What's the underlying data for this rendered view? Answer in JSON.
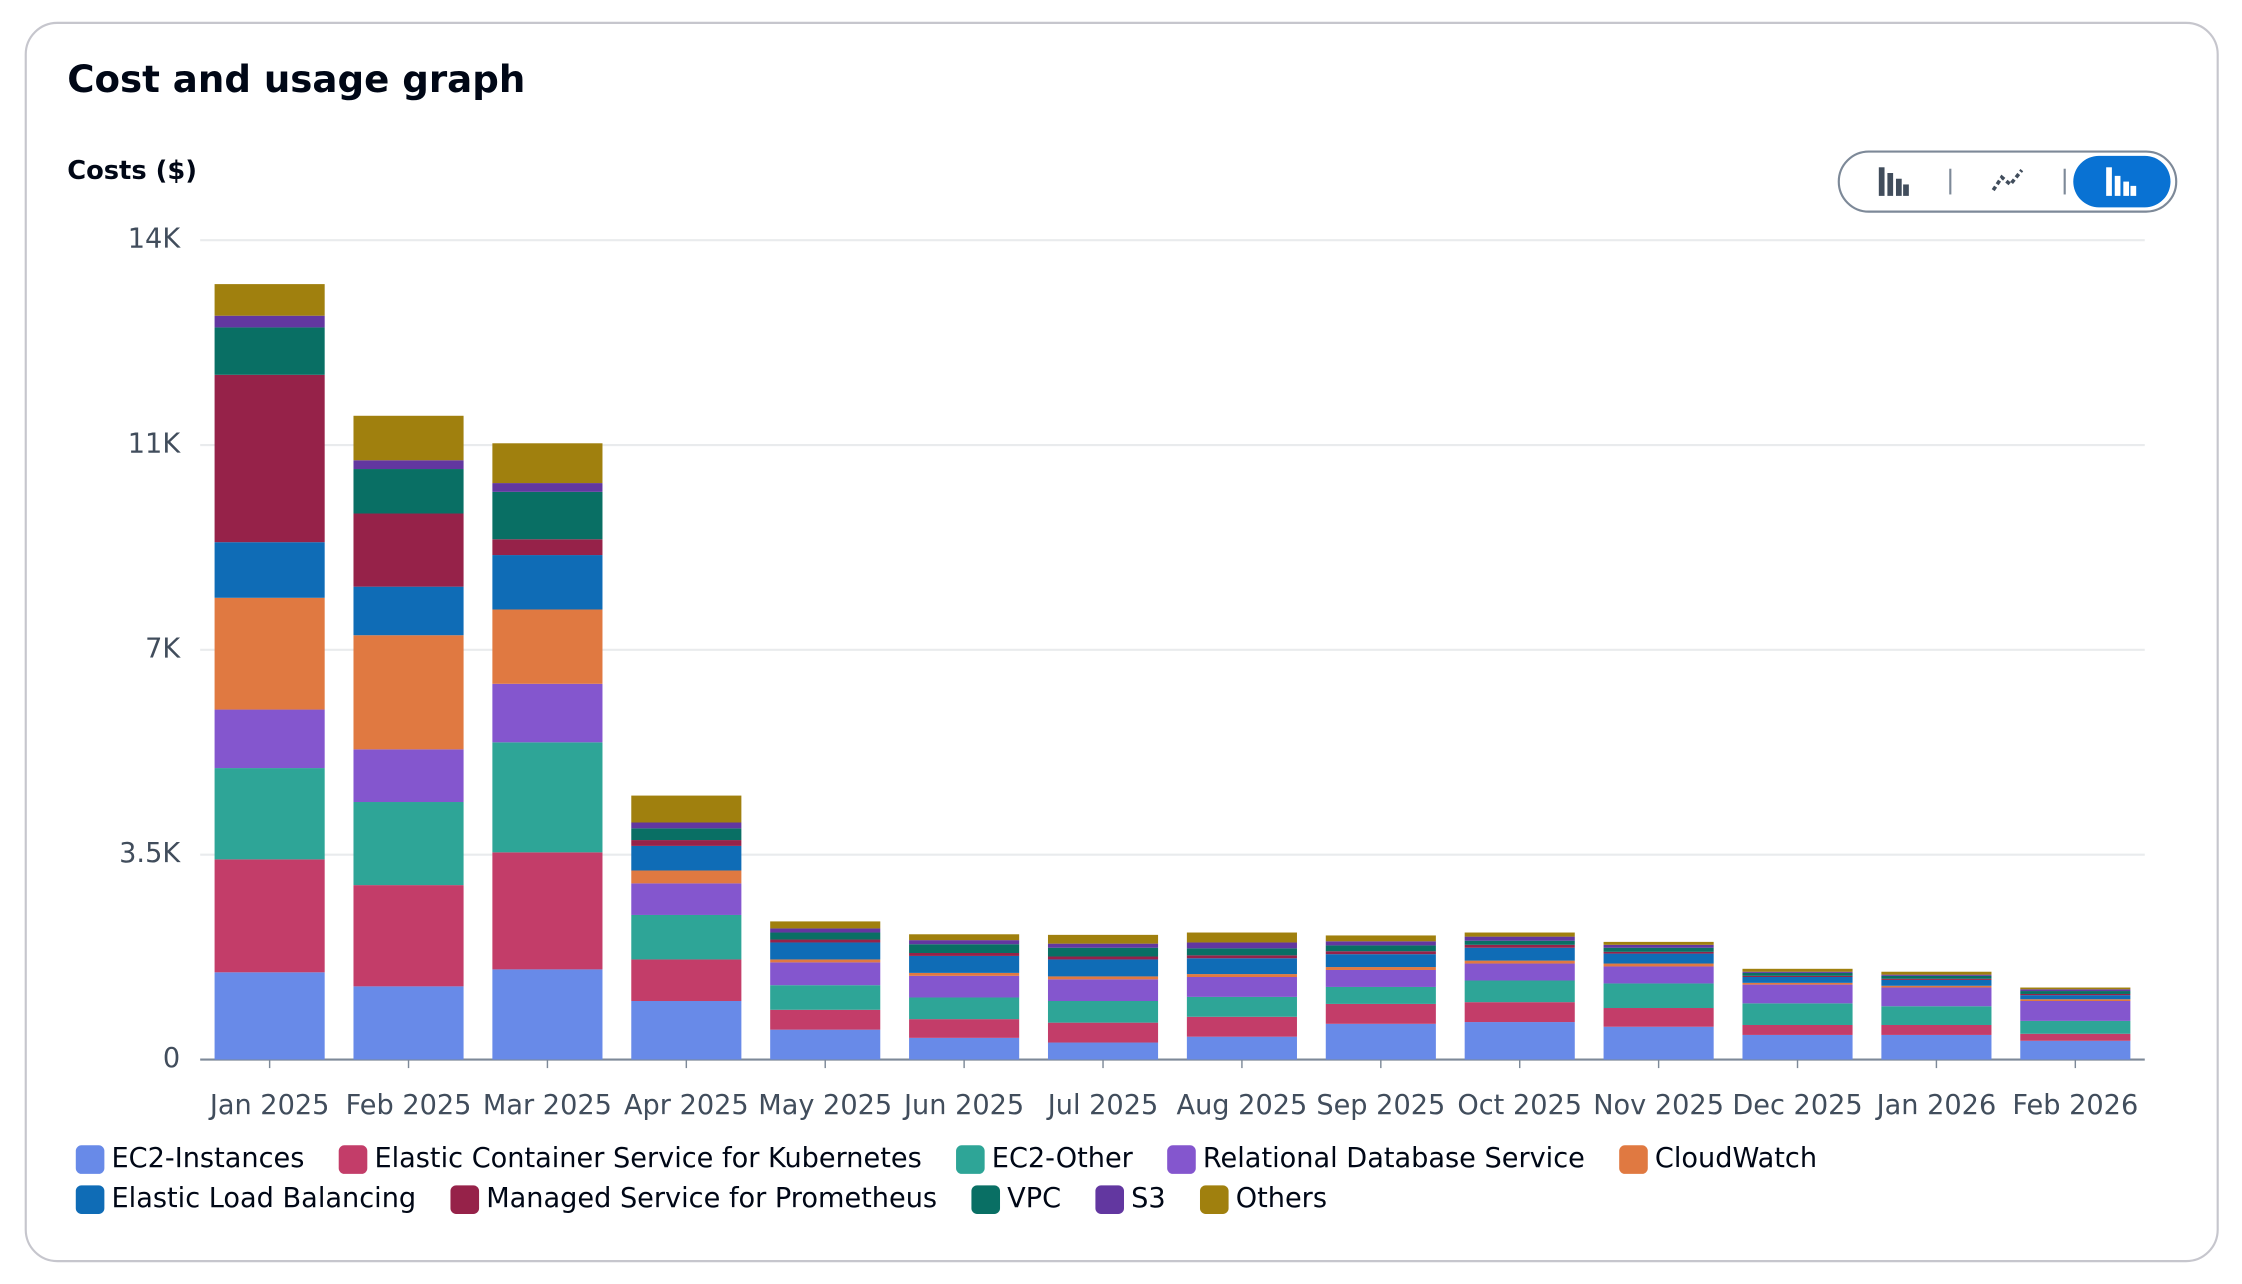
{
  "chart_data": {
    "type": "stacked_bar",
    "title": "Cost and usage graph",
    "y_label": "Costs ($)",
    "categories": [
      "Jan 2025",
      "Feb 2025",
      "Mar 2025",
      "Apr 2025",
      "May 2025",
      "Jun 2025",
      "Jul 2025",
      "Aug 2025",
      "Sep 2025",
      "Oct 2025",
      "Nov 2025",
      "Dec 2025",
      "Jan 2026",
      "Feb 2026"
    ],
    "ylim": [
      0,
      14000
    ],
    "yticks": [
      0,
      {
        "value": 3500,
        "label": "3.5K"
      },
      {
        "value": 7000,
        "label": "7K"
      },
      {
        "value": 10500,
        "label": "11K"
      },
      {
        "value": 14000,
        "label": "14K"
      }
    ],
    "grid": true,
    "series": [
      {
        "name": "EC2-Instances",
        "color": "#688ae8",
        "values": [
          1490,
          1250,
          1540,
          1000,
          510,
          370,
          290,
          390,
          610,
          640,
          560,
          420,
          420,
          320
        ]
      },
      {
        "name": "Elastic Container Service for Kubernetes",
        "color": "#c33d69",
        "values": [
          1930,
          1730,
          2000,
          710,
          340,
          320,
          340,
          340,
          340,
          340,
          320,
          170,
          170,
          120
        ]
      },
      {
        "name": "EC2-Other",
        "color": "#2ea597",
        "values": [
          1560,
          1420,
          1880,
          760,
          420,
          370,
          370,
          340,
          290,
          370,
          420,
          370,
          320,
          220
        ]
      },
      {
        "name": "Relational Database Service",
        "color": "#8456ce",
        "values": [
          1000,
          900,
          1000,
          540,
          390,
          370,
          370,
          340,
          290,
          290,
          290,
          320,
          320,
          340
        ]
      },
      {
        "name": "CloudWatch",
        "color": "#e07941",
        "values": [
          1910,
          1950,
          1270,
          220,
          50,
          50,
          50,
          50,
          50,
          50,
          50,
          30,
          30,
          30
        ]
      },
      {
        "name": "Elastic Load Balancing",
        "color": "#0f6cb6",
        "values": [
          950,
          830,
          930,
          420,
          290,
          290,
          290,
          270,
          220,
          220,
          170,
          100,
          100,
          70
        ]
      },
      {
        "name": "Managed Service for Prometheus",
        "color": "#962249",
        "values": [
          2860,
          1250,
          270,
          100,
          50,
          50,
          50,
          50,
          50,
          50,
          30,
          20,
          20,
          20
        ]
      },
      {
        "name": "VPC",
        "color": "#096f64",
        "values": [
          810,
          760,
          810,
          200,
          120,
          150,
          150,
          120,
          100,
          70,
          70,
          50,
          50,
          50
        ]
      },
      {
        "name": "S3",
        "color": "#6237a0",
        "values": [
          200,
          150,
          150,
          100,
          70,
          70,
          70,
          100,
          70,
          70,
          50,
          20,
          20,
          30
        ]
      },
      {
        "name": "Others",
        "color": "#a0800e",
        "values": [
          540,
          760,
          680,
          460,
          120,
          100,
          150,
          170,
          100,
          70,
          50,
          50,
          50,
          30
        ]
      }
    ]
  }
}
